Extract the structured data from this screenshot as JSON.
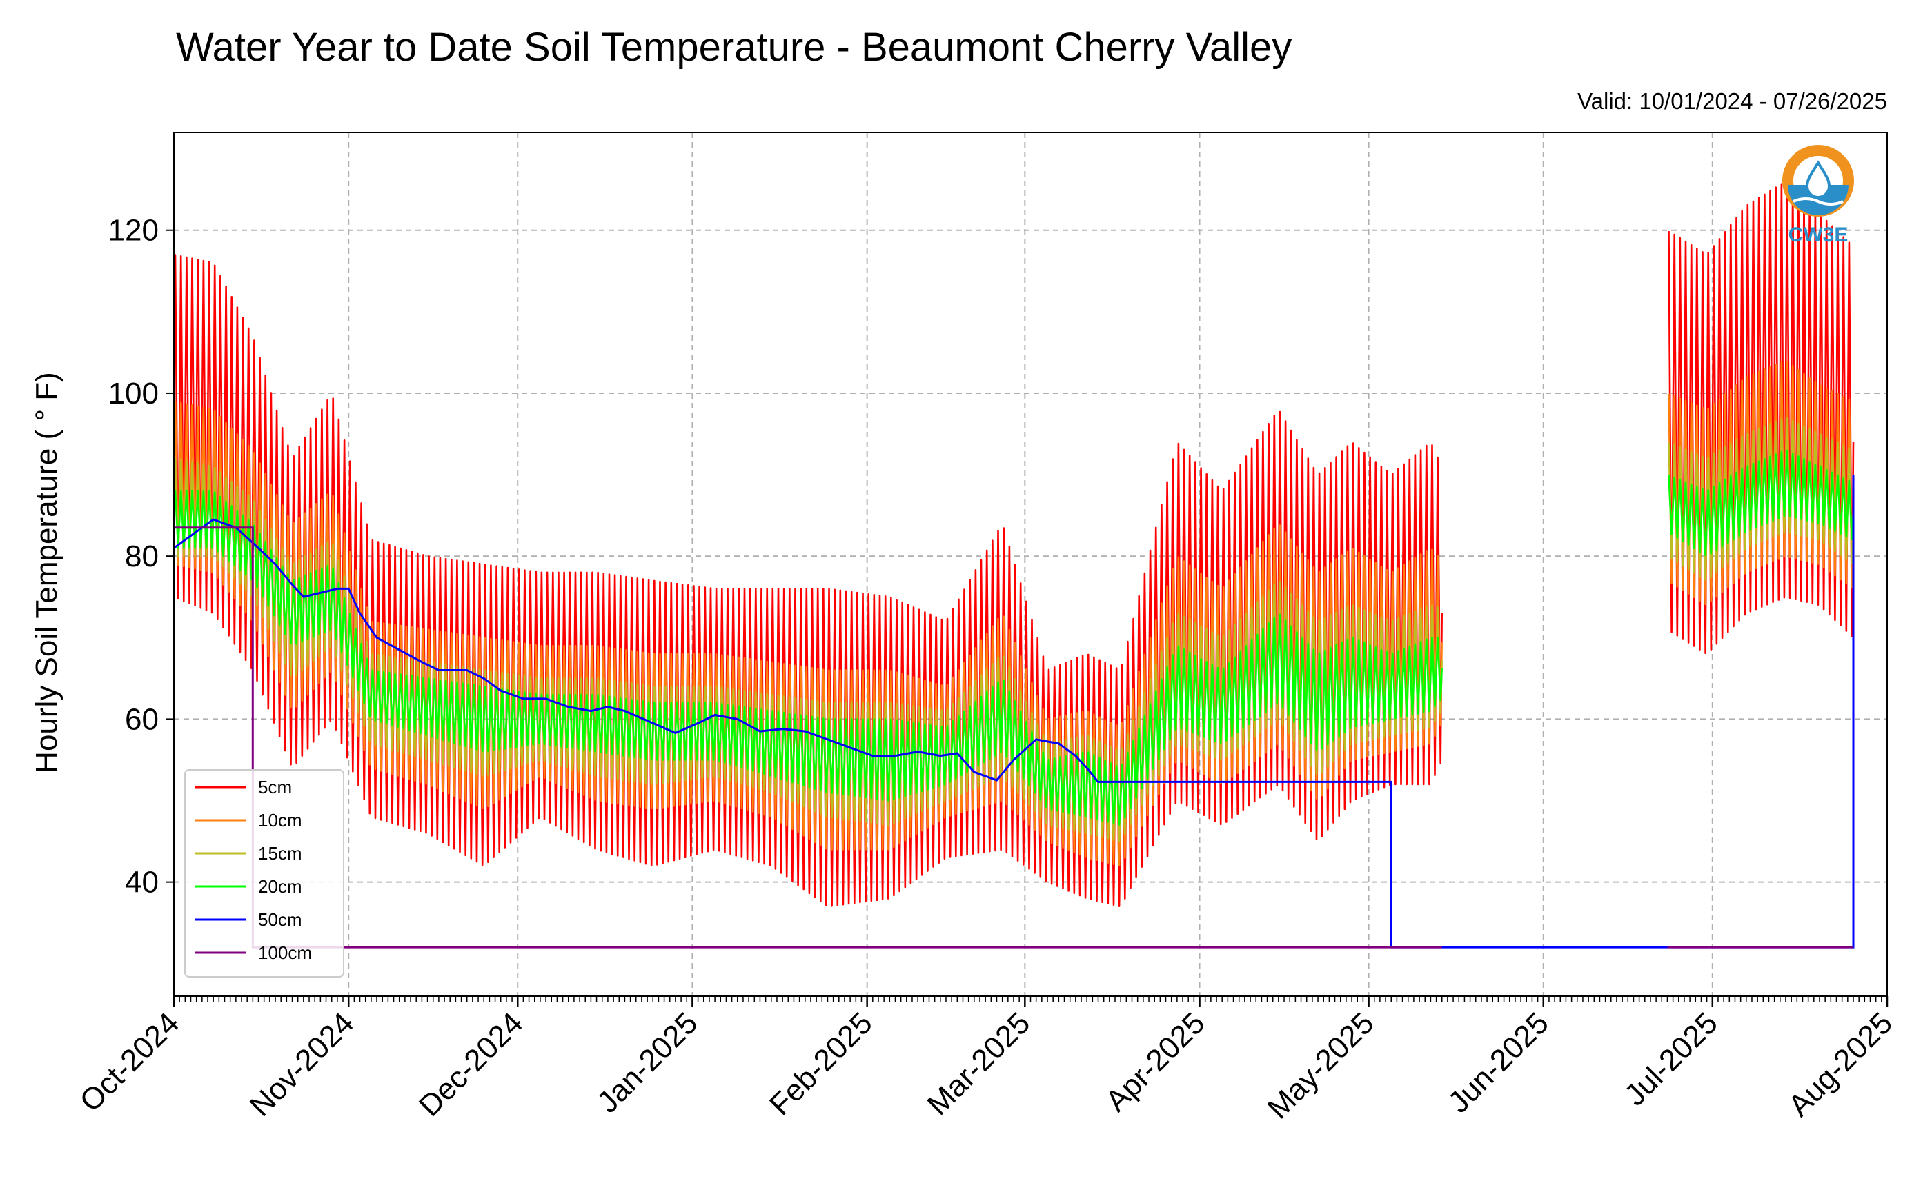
{
  "chart_data": {
    "type": "line",
    "title": "Water Year to Date Soil Temperature - Beaumont Cherry Valley",
    "subtitle": "Valid: 10/01/2024 - 07/26/2025",
    "xlabel": "",
    "ylabel": "Hourly Soil Temperature ( ° F)",
    "xlim": [
      "2024-10-01",
      "2025-08-01"
    ],
    "ylim": [
      26,
      132
    ],
    "y_ticks": [
      40,
      60,
      80,
      100,
      120
    ],
    "x_ticks": [
      "Oct-2024",
      "Nov-2024",
      "Dec-2024",
      "Jan-2025",
      "Feb-2025",
      "Mar-2025",
      "Apr-2025",
      "May-2025",
      "Jun-2025",
      "Jul-2025",
      "Aug-2025"
    ],
    "grid": true,
    "legend_position": "lower-left",
    "series": [
      {
        "name": "5cm",
        "color": "#ff0000",
        "profile": [
          {
            "date": "2024-10-01",
            "min": 75,
            "max": 117
          },
          {
            "date": "2024-10-08",
            "min": 73,
            "max": 116
          },
          {
            "date": "2024-10-15",
            "min": 66,
            "max": 107
          },
          {
            "date": "2024-10-22",
            "min": 54,
            "max": 92
          },
          {
            "date": "2024-10-29",
            "min": 60,
            "max": 100
          },
          {
            "date": "2024-11-05",
            "min": 48,
            "max": 82
          },
          {
            "date": "2024-11-15",
            "min": 46,
            "max": 80
          },
          {
            "date": "2024-11-25",
            "min": 42,
            "max": 79
          },
          {
            "date": "2024-12-05",
            "min": 48,
            "max": 78
          },
          {
            "date": "2024-12-15",
            "min": 44,
            "max": 78
          },
          {
            "date": "2024-12-25",
            "min": 42,
            "max": 77
          },
          {
            "date": "2025-01-05",
            "min": 44,
            "max": 76
          },
          {
            "date": "2025-01-15",
            "min": 42,
            "max": 76
          },
          {
            "date": "2025-01-25",
            "min": 37,
            "max": 76
          },
          {
            "date": "2025-02-05",
            "min": 38,
            "max": 75
          },
          {
            "date": "2025-02-15",
            "min": 43,
            "max": 72
          },
          {
            "date": "2025-02-25",
            "min": 44,
            "max": 84
          },
          {
            "date": "2025-03-05",
            "min": 40,
            "max": 66
          },
          {
            "date": "2025-03-12",
            "min": 38,
            "max": 68
          },
          {
            "date": "2025-03-18",
            "min": 37,
            "max": 66
          },
          {
            "date": "2025-03-28",
            "min": 50,
            "max": 94
          },
          {
            "date": "2025-04-05",
            "min": 47,
            "max": 88
          },
          {
            "date": "2025-04-15",
            "min": 52,
            "max": 98
          },
          {
            "date": "2025-04-22",
            "min": 45,
            "max": 90
          },
          {
            "date": "2025-04-28",
            "min": 50,
            "max": 94
          },
          {
            "date": "2025-05-05",
            "min": 52,
            "max": 90
          },
          {
            "date": "2025-05-12",
            "min": 52,
            "max": 94
          },
          {
            "date": "2025-05-16",
            "min": 58,
            "max": 88
          },
          {
            "date": "2025-06-23",
            "min": 71,
            "max": 120
          },
          {
            "date": "2025-06-30",
            "min": 68,
            "max": 117
          },
          {
            "date": "2025-07-07",
            "min": 73,
            "max": 123
          },
          {
            "date": "2025-07-14",
            "min": 75,
            "max": 126
          },
          {
            "date": "2025-07-20",
            "min": 74,
            "max": 122
          },
          {
            "date": "2025-07-26",
            "min": 70,
            "max": 118
          }
        ]
      },
      {
        "name": "10cm",
        "color": "#ff7f0e",
        "profile": [
          {
            "date": "2024-10-01",
            "min": 79,
            "max": 99
          },
          {
            "date": "2024-10-08",
            "min": 78,
            "max": 98
          },
          {
            "date": "2024-10-15",
            "min": 72,
            "max": 93
          },
          {
            "date": "2024-10-22",
            "min": 61,
            "max": 84
          },
          {
            "date": "2024-10-29",
            "min": 66,
            "max": 88
          },
          {
            "date": "2024-11-05",
            "min": 54,
            "max": 72
          },
          {
            "date": "2024-11-15",
            "min": 52,
            "max": 71
          },
          {
            "date": "2024-11-25",
            "min": 49,
            "max": 70
          },
          {
            "date": "2024-12-05",
            "min": 53,
            "max": 69
          },
          {
            "date": "2024-12-15",
            "min": 50,
            "max": 69
          },
          {
            "date": "2024-12-25",
            "min": 49,
            "max": 68
          },
          {
            "date": "2025-01-05",
            "min": 50,
            "max": 68
          },
          {
            "date": "2025-01-15",
            "min": 48,
            "max": 67
          },
          {
            "date": "2025-01-25",
            "min": 44,
            "max": 66
          },
          {
            "date": "2025-02-05",
            "min": 44,
            "max": 66
          },
          {
            "date": "2025-02-15",
            "min": 48,
            "max": 64
          },
          {
            "date": "2025-02-25",
            "min": 50,
            "max": 73
          },
          {
            "date": "2025-03-05",
            "min": 45,
            "max": 60
          },
          {
            "date": "2025-03-12",
            "min": 43,
            "max": 61
          },
          {
            "date": "2025-03-18",
            "min": 42,
            "max": 59
          },
          {
            "date": "2025-03-28",
            "min": 55,
            "max": 80
          },
          {
            "date": "2025-04-05",
            "min": 52,
            "max": 76
          },
          {
            "date": "2025-04-15",
            "min": 57,
            "max": 84
          },
          {
            "date": "2025-04-22",
            "min": 50,
            "max": 78
          },
          {
            "date": "2025-04-28",
            "min": 55,
            "max": 81
          },
          {
            "date": "2025-05-05",
            "min": 56,
            "max": 78
          },
          {
            "date": "2025-05-12",
            "min": 57,
            "max": 81
          },
          {
            "date": "2025-05-16",
            "min": 62,
            "max": 78
          },
          {
            "date": "2025-06-23",
            "min": 77,
            "max": 100
          },
          {
            "date": "2025-06-30",
            "min": 74,
            "max": 98
          },
          {
            "date": "2025-07-07",
            "min": 78,
            "max": 102
          },
          {
            "date": "2025-07-14",
            "min": 80,
            "max": 104
          },
          {
            "date": "2025-07-20",
            "min": 79,
            "max": 101
          },
          {
            "date": "2025-07-26",
            "min": 76,
            "max": 99
          }
        ]
      },
      {
        "name": "15cm",
        "color": "#bcbd22",
        "profile": [
          {
            "date": "2024-10-01",
            "min": 80,
            "max": 92
          },
          {
            "date": "2024-10-08",
            "min": 80,
            "max": 91
          },
          {
            "date": "2024-10-15",
            "min": 75,
            "max": 87
          },
          {
            "date": "2024-10-22",
            "min": 65,
            "max": 79
          },
          {
            "date": "2024-10-29",
            "min": 69,
            "max": 82
          },
          {
            "date": "2024-11-05",
            "min": 57,
            "max": 68
          },
          {
            "date": "2024-11-15",
            "min": 55,
            "max": 67
          },
          {
            "date": "2024-11-25",
            "min": 53,
            "max": 66
          },
          {
            "date": "2024-12-05",
            "min": 55,
            "max": 65
          },
          {
            "date": "2024-12-15",
            "min": 53,
            "max": 65
          },
          {
            "date": "2024-12-25",
            "min": 52,
            "max": 64
          },
          {
            "date": "2025-01-05",
            "min": 53,
            "max": 64
          },
          {
            "date": "2025-01-15",
            "min": 51,
            "max": 63
          },
          {
            "date": "2025-01-25",
            "min": 48,
            "max": 62
          },
          {
            "date": "2025-02-05",
            "min": 47,
            "max": 62
          },
          {
            "date": "2025-02-15",
            "min": 50,
            "max": 61
          },
          {
            "date": "2025-02-25",
            "min": 53,
            "max": 68
          },
          {
            "date": "2025-03-05",
            "min": 47,
            "max": 57
          },
          {
            "date": "2025-03-12",
            "min": 46,
            "max": 58
          },
          {
            "date": "2025-03-18",
            "min": 45,
            "max": 56
          },
          {
            "date": "2025-03-28",
            "min": 57,
            "max": 73
          },
          {
            "date": "2025-04-05",
            "min": 55,
            "max": 70
          },
          {
            "date": "2025-04-15",
            "min": 60,
            "max": 77
          },
          {
            "date": "2025-04-22",
            "min": 53,
            "max": 72
          },
          {
            "date": "2025-04-28",
            "min": 57,
            "max": 74
          },
          {
            "date": "2025-05-05",
            "min": 58,
            "max": 72
          },
          {
            "date": "2025-05-12",
            "min": 59,
            "max": 74
          },
          {
            "date": "2025-05-16",
            "min": 63,
            "max": 73
          },
          {
            "date": "2025-06-23",
            "min": 80,
            "max": 94
          },
          {
            "date": "2025-06-30",
            "min": 77,
            "max": 92
          },
          {
            "date": "2025-07-07",
            "min": 81,
            "max": 95
          },
          {
            "date": "2025-07-14",
            "min": 83,
            "max": 97
          },
          {
            "date": "2025-07-20",
            "min": 82,
            "max": 95
          },
          {
            "date": "2025-07-26",
            "min": 79,
            "max": 93
          }
        ]
      },
      {
        "name": "20cm",
        "color": "#00ff00",
        "profile": [
          {
            "date": "2024-10-01",
            "min": 81,
            "max": 88
          },
          {
            "date": "2024-10-08",
            "min": 81,
            "max": 88
          },
          {
            "date": "2024-10-15",
            "min": 77,
            "max": 84
          },
          {
            "date": "2024-10-22",
            "min": 69,
            "max": 77
          },
          {
            "date": "2024-10-29",
            "min": 71,
            "max": 79
          },
          {
            "date": "2024-11-05",
            "min": 60,
            "max": 66
          },
          {
            "date": "2024-11-15",
            "min": 58,
            "max": 65
          },
          {
            "date": "2024-11-25",
            "min": 56,
            "max": 64
          },
          {
            "date": "2024-12-05",
            "min": 57,
            "max": 63
          },
          {
            "date": "2024-12-15",
            "min": 56,
            "max": 63
          },
          {
            "date": "2024-12-25",
            "min": 55,
            "max": 62
          },
          {
            "date": "2025-01-05",
            "min": 55,
            "max": 62
          },
          {
            "date": "2025-01-15",
            "min": 53,
            "max": 61
          },
          {
            "date": "2025-01-25",
            "min": 51,
            "max": 60
          },
          {
            "date": "2025-02-05",
            "min": 50,
            "max": 60
          },
          {
            "date": "2025-02-15",
            "min": 52,
            "max": 59
          },
          {
            "date": "2025-02-25",
            "min": 56,
            "max": 65
          },
          {
            "date": "2025-03-05",
            "min": 49,
            "max": 55
          },
          {
            "date": "2025-03-12",
            "min": 48,
            "max": 56
          },
          {
            "date": "2025-03-18",
            "min": 47,
            "max": 54
          },
          {
            "date": "2025-03-28",
            "min": 59,
            "max": 69
          },
          {
            "date": "2025-04-05",
            "min": 57,
            "max": 66
          },
          {
            "date": "2025-04-15",
            "min": 62,
            "max": 73
          },
          {
            "date": "2025-04-22",
            "min": 56,
            "max": 68
          },
          {
            "date": "2025-04-28",
            "min": 59,
            "max": 70
          },
          {
            "date": "2025-05-05",
            "min": 60,
            "max": 68
          },
          {
            "date": "2025-05-12",
            "min": 61,
            "max": 70
          },
          {
            "date": "2025-05-16",
            "min": 64,
            "max": 70
          },
          {
            "date": "2025-06-23",
            "min": 83,
            "max": 90
          },
          {
            "date": "2025-06-30",
            "min": 80,
            "max": 88
          },
          {
            "date": "2025-07-07",
            "min": 83,
            "max": 91
          },
          {
            "date": "2025-07-14",
            "min": 85,
            "max": 93
          },
          {
            "date": "2025-07-20",
            "min": 84,
            "max": 91
          },
          {
            "date": "2025-07-26",
            "min": 82,
            "max": 89
          }
        ]
      },
      {
        "name": "50cm",
        "color": "#0000ff",
        "points": [
          [
            "2024-10-01",
            81
          ],
          [
            "2024-10-06",
            83.5
          ],
          [
            "2024-10-08",
            84.5
          ],
          [
            "2024-10-12",
            83.5
          ],
          [
            "2024-10-16",
            81
          ],
          [
            "2024-10-19",
            79
          ],
          [
            "2024-10-22",
            76.5
          ],
          [
            "2024-10-24",
            75
          ],
          [
            "2024-10-27",
            75.5
          ],
          [
            "2024-10-30",
            76
          ],
          [
            "2024-11-01",
            76
          ],
          [
            "2024-11-03",
            73
          ],
          [
            "2024-11-06",
            70
          ],
          [
            "2024-11-10",
            68.5
          ],
          [
            "2024-11-14",
            67
          ],
          [
            "2024-11-17",
            66
          ],
          [
            "2024-11-22",
            66
          ],
          [
            "2024-11-25",
            65
          ],
          [
            "2024-11-28",
            63.5
          ],
          [
            "2024-12-02",
            62.5
          ],
          [
            "2024-12-06",
            62.5
          ],
          [
            "2024-12-10",
            61.5
          ],
          [
            "2024-12-14",
            61
          ],
          [
            "2024-12-17",
            61.5
          ],
          [
            "2024-12-20",
            61
          ],
          [
            "2024-12-25",
            59.5
          ],
          [
            "2024-12-29",
            58.3
          ],
          [
            "2025-01-02",
            59.5
          ],
          [
            "2025-01-05",
            60.5
          ],
          [
            "2025-01-09",
            60
          ],
          [
            "2025-01-13",
            58.5
          ],
          [
            "2025-01-17",
            58.8
          ],
          [
            "2025-01-21",
            58.5
          ],
          [
            "2025-01-25",
            57.5
          ],
          [
            "2025-01-29",
            56.5
          ],
          [
            "2025-02-02",
            55.5
          ],
          [
            "2025-02-06",
            55.5
          ],
          [
            "2025-02-10",
            56
          ],
          [
            "2025-02-14",
            55.5
          ],
          [
            "2025-02-17",
            55.8
          ],
          [
            "2025-02-20",
            53.5
          ],
          [
            "2025-02-24",
            52.5
          ],
          [
            "2025-02-27",
            55
          ],
          [
            "2025-03-03",
            57.5
          ],
          [
            "2025-03-07",
            57
          ],
          [
            "2025-03-10",
            55.5
          ],
          [
            "2025-03-12",
            54
          ],
          [
            "2025-03-14",
            52.3
          ],
          [
            "2025-04-27",
            52.3
          ],
          [
            "2025-05-05",
            52.3
          ],
          [
            "2025-05-05",
            32
          ],
          [
            "2025-05-14",
            32
          ],
          [
            "2025-06-23",
            32
          ],
          [
            "2025-07-26",
            32
          ],
          [
            "2025-07-26",
            90
          ]
        ]
      },
      {
        "name": "100cm",
        "color": "#800080",
        "points": [
          [
            "2024-10-01",
            83.5
          ],
          [
            "2024-10-15",
            83.5
          ],
          [
            "2024-10-15",
            32
          ],
          [
            "2025-05-14",
            32
          ],
          [
            "2025-06-23",
            32
          ],
          [
            "2025-07-26",
            32
          ]
        ],
        "gaps": [
          [
            "2025-05-14",
            "2025-06-23"
          ]
        ]
      }
    ],
    "data_breaks": [
      [
        "2025-05-14",
        "2025-06-23"
      ]
    ]
  },
  "logo": {
    "text": "CW3E",
    "color_orange": "#f0921e",
    "color_blue": "#2a8fc9"
  }
}
